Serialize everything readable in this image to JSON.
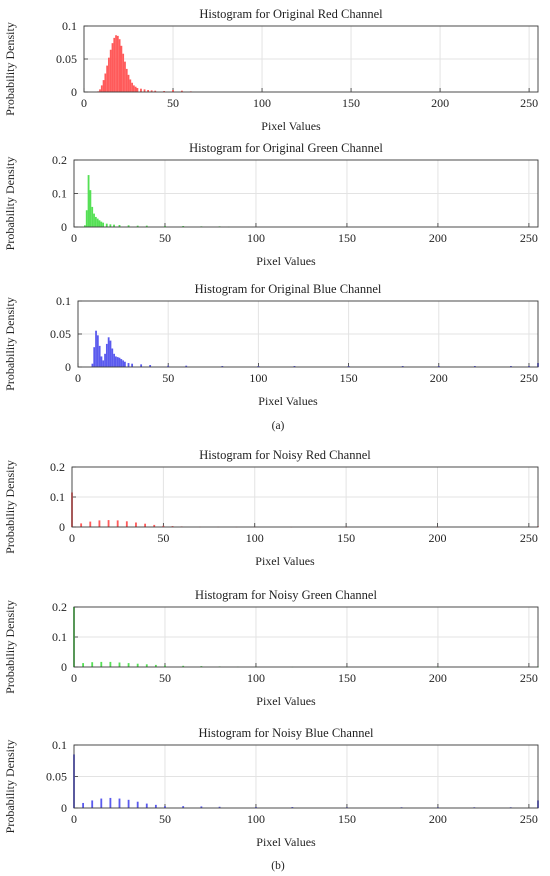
{
  "chart_data": [
    {
      "type": "bar",
      "title": "Histogram for Original Red Channel",
      "xlabel": "Pixel Values",
      "ylabel": "Probability Density",
      "xlim": [
        0,
        255
      ],
      "ylim": [
        0,
        0.1
      ],
      "yticks": [
        "0",
        "0.05",
        "0.1"
      ],
      "xticks": [
        "0",
        "50",
        "100",
        "150",
        "200",
        "250"
      ],
      "grid": true,
      "color": "#ff5a5a",
      "series": [
        {
          "x": [
            8,
            9,
            10,
            11,
            12,
            13,
            14,
            15,
            16,
            17,
            18,
            19,
            20,
            21,
            22,
            23,
            24,
            25,
            26,
            27,
            28,
            29,
            30,
            32,
            34,
            36,
            38,
            40,
            45,
            50,
            55,
            60
          ],
          "values": [
            0.001,
            0.004,
            0.01,
            0.018,
            0.028,
            0.04,
            0.052,
            0.064,
            0.074,
            0.082,
            0.086,
            0.085,
            0.08,
            0.07,
            0.058,
            0.046,
            0.035,
            0.026,
            0.019,
            0.014,
            0.01,
            0.008,
            0.006,
            0.005,
            0.004,
            0.003,
            0.0025,
            0.002,
            0.0015,
            0.003,
            0.002,
            0.001
          ]
        }
      ]
    },
    {
      "type": "bar",
      "title": "Histogram for Original Green Channel",
      "xlabel": "Pixel Values",
      "ylabel": "Probability Density",
      "xlim": [
        0,
        255
      ],
      "ylim": [
        0,
        0.2
      ],
      "yticks": [
        "0",
        "0.1",
        "0.2"
      ],
      "xticks": [
        "0",
        "50",
        "100",
        "150",
        "200",
        "250"
      ],
      "grid": true,
      "color": "#55e055",
      "series": [
        {
          "x": [
            6,
            7,
            8,
            9,
            10,
            11,
            12,
            13,
            14,
            15,
            16,
            18,
            20,
            22,
            25,
            30,
            35,
            40,
            50,
            60,
            70,
            80,
            85
          ],
          "values": [
            0.005,
            0.05,
            0.155,
            0.11,
            0.06,
            0.04,
            0.03,
            0.025,
            0.02,
            0.016,
            0.013,
            0.01,
            0.008,
            0.007,
            0.006,
            0.005,
            0.004,
            0.004,
            0.003,
            0.003,
            0.002,
            0.002,
            0.001
          ]
        }
      ]
    },
    {
      "type": "bar",
      "title": "Histogram for Original Blue Channel",
      "xlabel": "Pixel Values",
      "ylabel": "Probability Density",
      "xlim": [
        0,
        255
      ],
      "ylim": [
        0,
        0.1
      ],
      "yticks": [
        "0",
        "0.05",
        "0.1"
      ],
      "xticks": [
        "0",
        "50",
        "100",
        "150",
        "200",
        "250"
      ],
      "grid": true,
      "color": "#5a5aee",
      "series": [
        {
          "x": [
            8,
            9,
            10,
            11,
            12,
            13,
            14,
            15,
            16,
            17,
            18,
            19,
            20,
            21,
            22,
            23,
            24,
            25,
            26,
            28,
            30,
            35,
            40,
            50,
            60,
            80,
            100,
            120,
            150,
            180,
            200,
            220,
            240,
            250,
            255
          ],
          "values": [
            0.005,
            0.03,
            0.055,
            0.048,
            0.032,
            0.016,
            0.01,
            0.02,
            0.035,
            0.045,
            0.04,
            0.028,
            0.02,
            0.016,
            0.015,
            0.014,
            0.012,
            0.01,
            0.008,
            0.006,
            0.005,
            0.004,
            0.003,
            0.002,
            0.002,
            0.0015,
            0.0015,
            0.0015,
            0.0015,
            0.0015,
            0.0015,
            0.0015,
            0.0015,
            0.0015,
            0.006
          ]
        }
      ]
    },
    {
      "type": "bar",
      "title": "Histogram for Noisy Red Channel",
      "xlabel": "Pixel Values",
      "ylabel": "Probability Density",
      "xlim": [
        0,
        255
      ],
      "ylim": [
        0,
        0.2
      ],
      "yticks": [
        "0",
        "0.1",
        "0.2"
      ],
      "xticks": [
        "0",
        "50",
        "100",
        "150",
        "200",
        "250"
      ],
      "grid": true,
      "color": "#ff5a5a",
      "series": [
        {
          "x": [
            0,
            5,
            10,
            15,
            20,
            25,
            30,
            35,
            40,
            45,
            50,
            55,
            60,
            70,
            80,
            90,
            100,
            120,
            150,
            200,
            255
          ],
          "values": [
            0.115,
            0.012,
            0.018,
            0.022,
            0.023,
            0.022,
            0.019,
            0.015,
            0.011,
            0.007,
            0.004,
            0.003,
            0.002,
            0.001,
            0.001,
            0.0005,
            0.0005,
            0.0003,
            0.0002,
            0.0001,
            0.002
          ]
        }
      ]
    },
    {
      "type": "bar",
      "title": "Histogram for Noisy Green Channel",
      "xlabel": "Pixel Values",
      "ylabel": "Probability Density",
      "xlim": [
        0,
        255
      ],
      "ylim": [
        0,
        0.2
      ],
      "yticks": [
        "0",
        "0.1",
        "0.2"
      ],
      "xticks": [
        "0",
        "50",
        "100",
        "150",
        "200",
        "250"
      ],
      "grid": true,
      "color": "#55e055",
      "series": [
        {
          "x": [
            0,
            5,
            10,
            15,
            20,
            25,
            30,
            35,
            40,
            45,
            50,
            60,
            70,
            80,
            90,
            100,
            120,
            150,
            200,
            255
          ],
          "values": [
            0.2,
            0.013,
            0.016,
            0.017,
            0.017,
            0.015,
            0.013,
            0.011,
            0.009,
            0.007,
            0.005,
            0.004,
            0.003,
            0.002,
            0.0015,
            0.001,
            0.0005,
            0.0003,
            0.0001,
            0.001
          ]
        }
      ]
    },
    {
      "type": "bar",
      "title": "Histogram for Noisy Blue Channel",
      "xlabel": "Pixel Values",
      "ylabel": "Probability Density",
      "xlim": [
        0,
        255
      ],
      "ylim": [
        0,
        0.1
      ],
      "yticks": [
        "0",
        "0.05",
        "0.1"
      ],
      "xticks": [
        "0",
        "50",
        "100",
        "150",
        "200",
        "250"
      ],
      "grid": true,
      "color": "#5a5aee",
      "series": [
        {
          "x": [
            0,
            5,
            10,
            15,
            20,
            25,
            30,
            35,
            40,
            45,
            50,
            60,
            70,
            80,
            100,
            120,
            150,
            180,
            200,
            220,
            240,
            255
          ],
          "values": [
            0.085,
            0.008,
            0.012,
            0.015,
            0.016,
            0.015,
            0.013,
            0.01,
            0.007,
            0.005,
            0.003,
            0.003,
            0.0025,
            0.002,
            0.0015,
            0.0015,
            0.0012,
            0.0012,
            0.0012,
            0.0012,
            0.0012,
            0.012
          ]
        }
      ]
    }
  ],
  "captions": [
    "(a)",
    "(b)"
  ]
}
